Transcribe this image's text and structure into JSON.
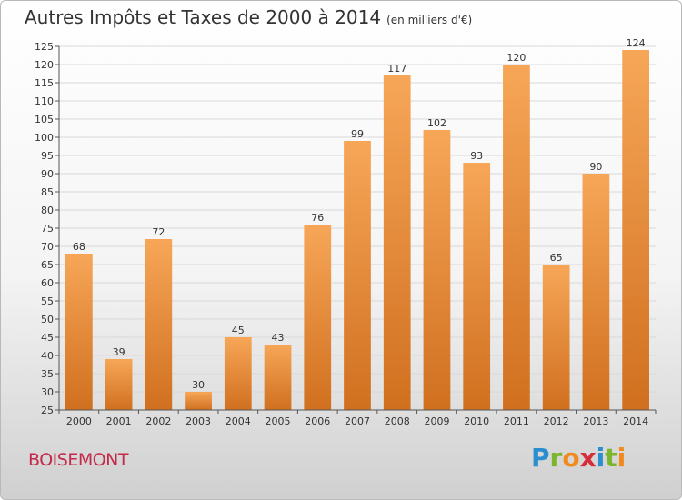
{
  "header": {
    "title": "Autres Impôts et Taxes de 2000 à 2014",
    "subtitle": "(en milliers d'€)"
  },
  "footer": {
    "city": "BOISEMONT",
    "logo": {
      "letters": [
        "P",
        "r",
        "o",
        "x",
        "i",
        "t",
        "i"
      ],
      "colors": [
        "#2b8fcf",
        "#7ab52c",
        "#f08a1c",
        "#d62d3a",
        "#2b8fcf",
        "#7ab52c",
        "#f08a1c"
      ]
    }
  },
  "chart_data": {
    "type": "bar",
    "categories": [
      "2000",
      "2001",
      "2002",
      "2003",
      "2004",
      "2005",
      "2006",
      "2007",
      "2008",
      "2009",
      "2010",
      "2011",
      "2012",
      "2013",
      "2014"
    ],
    "values": [
      68,
      39,
      72,
      30,
      45,
      43,
      76,
      99,
      117,
      102,
      93,
      120,
      65,
      90,
      124
    ],
    "ylim": [
      25,
      125
    ],
    "ytick_step": 5,
    "grid": "horizontal",
    "bar_color_top": "#f7a658",
    "bar_color_bottom": "#d0701f"
  }
}
